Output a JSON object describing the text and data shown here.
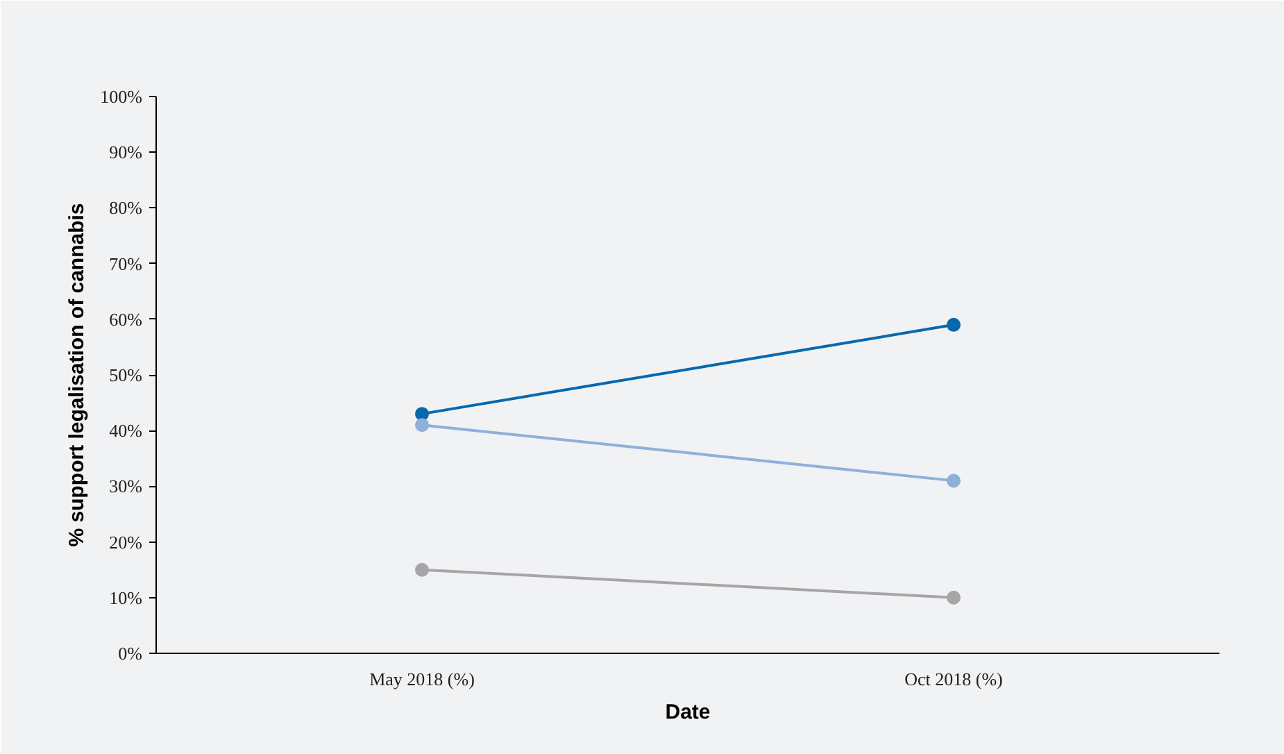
{
  "chart_data": {
    "type": "line",
    "xlabel": "Date",
    "ylabel": "% support legalisation of cannabis",
    "categories": [
      "May 2018 (%)",
      "Oct 2018 (%)"
    ],
    "series": [
      {
        "color": "#0868ac",
        "values": [
          43,
          59
        ]
      },
      {
        "color": "#8eb0d9",
        "values": [
          41,
          31
        ]
      },
      {
        "color": "#a6a6a8",
        "values": [
          15,
          10
        ]
      }
    ],
    "ylim": [
      0,
      100
    ],
    "yticks": [
      {
        "value": 0,
        "label": "0%"
      },
      {
        "value": 10,
        "label": "10%"
      },
      {
        "value": 20,
        "label": "20%"
      },
      {
        "value": 30,
        "label": "30%"
      },
      {
        "value": 40,
        "label": "40%"
      },
      {
        "value": 50,
        "label": "50%"
      },
      {
        "value": 60,
        "label": "60%"
      },
      {
        "value": 70,
        "label": "70%"
      },
      {
        "value": 80,
        "label": "80%"
      },
      {
        "value": 90,
        "label": "90%"
      },
      {
        "value": 100,
        "label": "100%"
      }
    ],
    "grid": false,
    "marker": "circle",
    "line_style": "solid"
  }
}
